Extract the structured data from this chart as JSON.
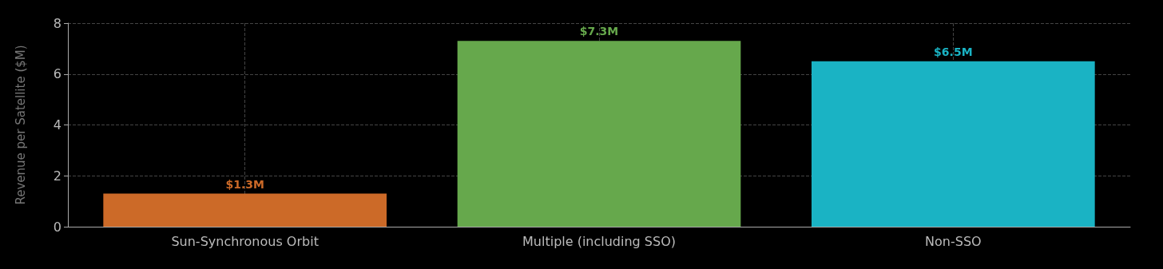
{
  "chart_data": {
    "type": "bar",
    "ylabel": "Revenue per Satellite ($M)",
    "categories": [
      "Sun-Synchronous Orbit",
      "Multiple (including SSO)",
      "Non-SSO"
    ],
    "values": [
      1.3,
      7.3,
      6.5
    ],
    "colors": [
      "#cc6a28",
      "#66a84c",
      "#1ab3c4"
    ],
    "value_labels": [
      "$1.3M",
      "$7.3M",
      "$6.5M"
    ],
    "ylim": [
      0,
      8
    ],
    "yticks": [
      0,
      2,
      4,
      6,
      8
    ],
    "grid": true
  }
}
